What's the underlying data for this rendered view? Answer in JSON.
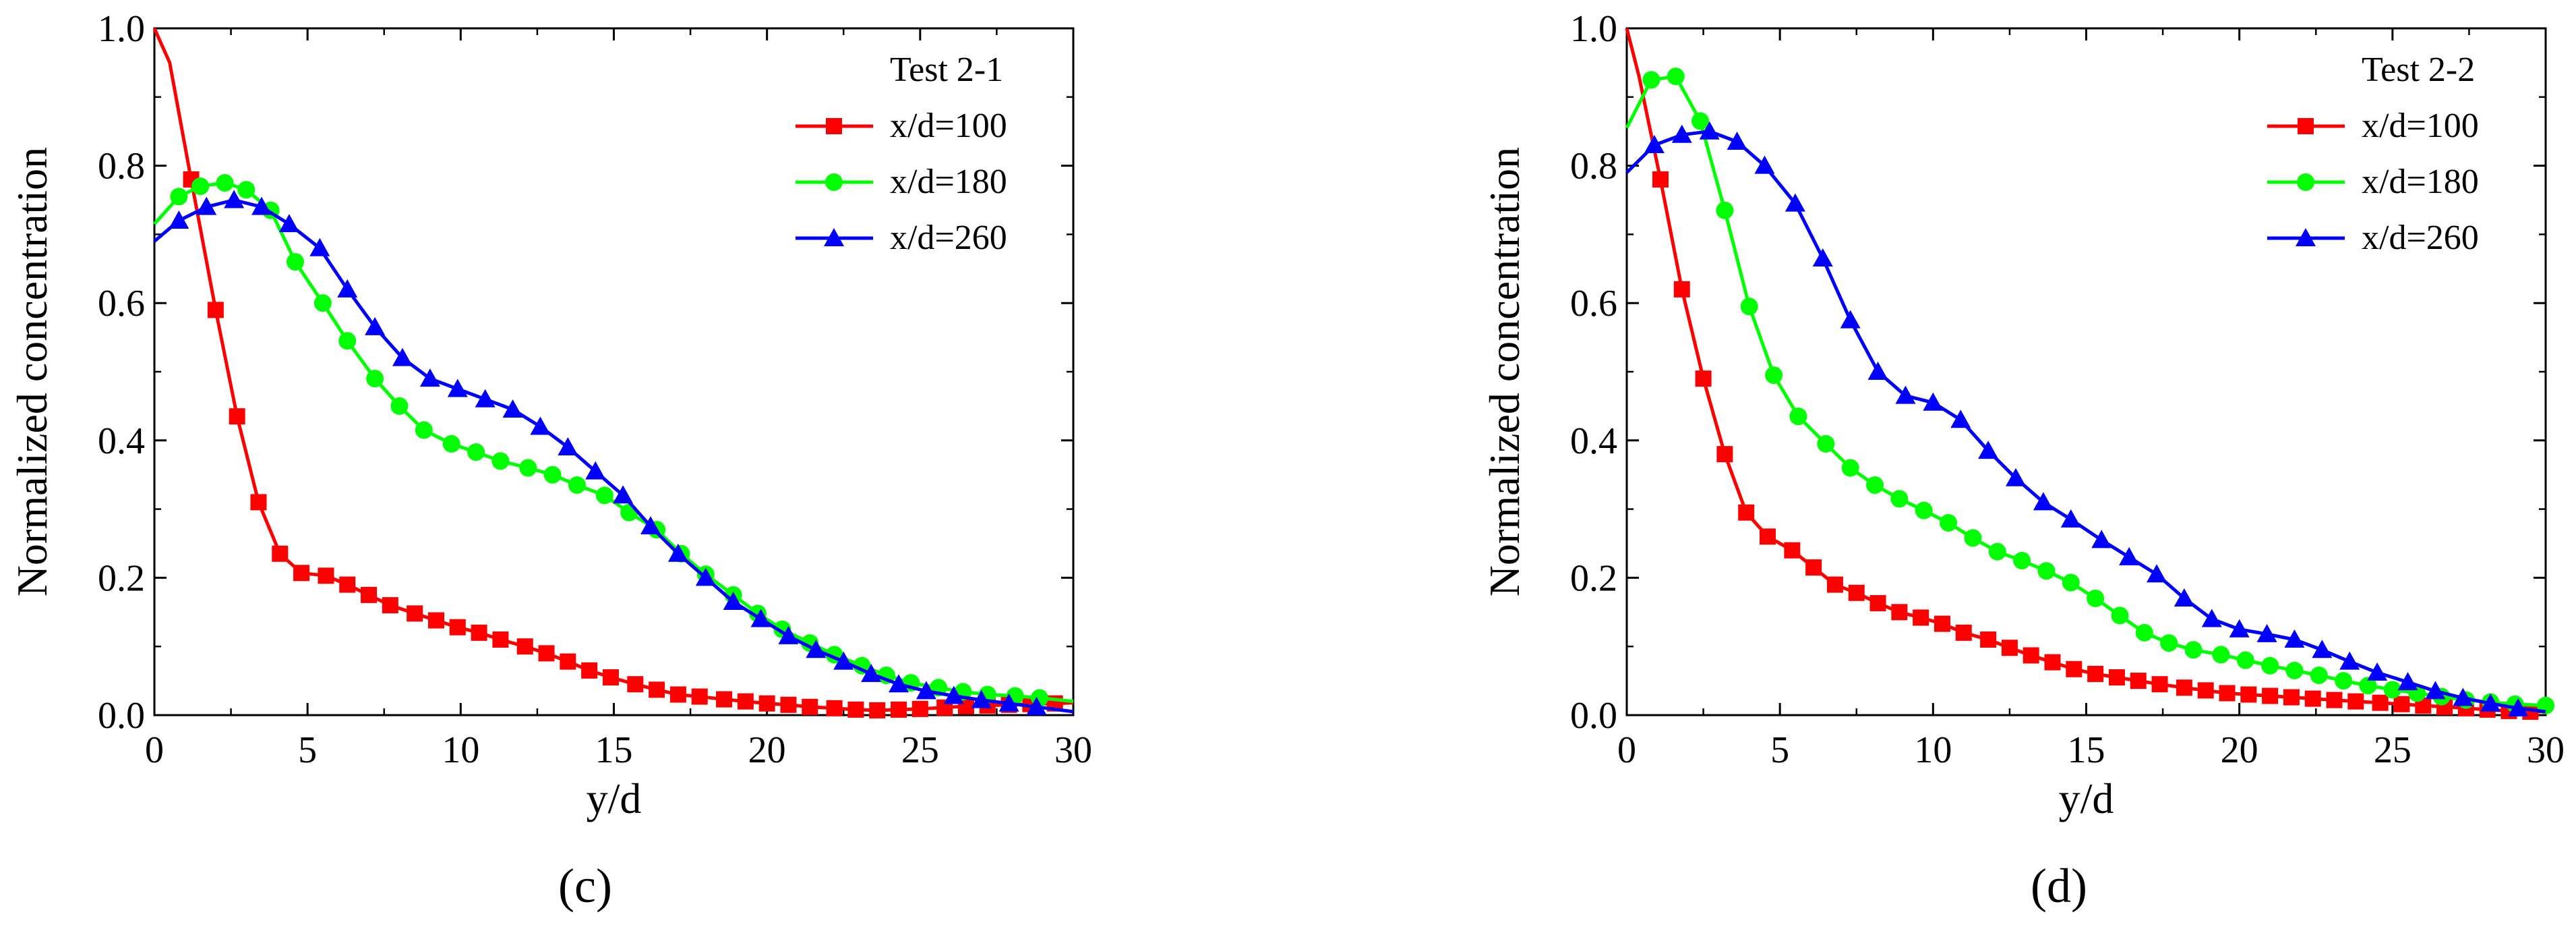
{
  "chart_data": [
    {
      "type": "line",
      "panel_label": "(c)",
      "legend_title": "Test 2-1",
      "xlabel": "y/d",
      "ylabel": "Normalized concentration",
      "xlim": [
        0,
        30
      ],
      "ylim": [
        0,
        1.0
      ],
      "xticks": [
        "0",
        "5",
        "10",
        "15",
        "20",
        "25",
        "30"
      ],
      "yticks": [
        "0.0",
        "0.2",
        "0.4",
        "0.6",
        "0.8",
        "1.0"
      ],
      "grid": false,
      "legend_position": "top-right",
      "series": [
        {
          "name": "x/d=100",
          "color": "#ff0000",
          "marker": "square",
          "x": [
            0,
            0.5,
            1.2,
            2.0,
            2.7,
            3.4,
            4.1,
            4.8,
            5.6,
            6.3,
            7.0,
            7.7,
            8.5,
            9.2,
            9.9,
            10.6,
            11.3,
            12.1,
            12.8,
            13.5,
            14.2,
            14.9,
            15.7,
            16.4,
            17.1,
            17.8,
            18.6,
            19.3,
            20.0,
            20.7,
            21.4,
            22.2,
            22.9,
            23.6,
            24.3,
            25.0,
            25.8,
            26.5,
            27.2,
            27.9,
            28.6,
            29.4,
            30.0
          ],
          "y": [
            1.0,
            0.95,
            0.78,
            0.59,
            0.435,
            0.31,
            0.235,
            0.207,
            0.203,
            0.19,
            0.175,
            0.16,
            0.148,
            0.138,
            0.128,
            0.12,
            0.11,
            0.1,
            0.09,
            0.078,
            0.065,
            0.055,
            0.045,
            0.037,
            0.03,
            0.027,
            0.023,
            0.02,
            0.017,
            0.015,
            0.012,
            0.01,
            0.008,
            0.007,
            0.008,
            0.009,
            0.011,
            0.013,
            0.014,
            0.015,
            0.016,
            0.017,
            0.018
          ],
          "markers": [
            1.2,
            2.0,
            2.7,
            3.4,
            4.1,
            4.8,
            5.6,
            6.3,
            7.0,
            7.7,
            8.5,
            9.2,
            9.9,
            10.6,
            11.3,
            12.1,
            12.8,
            13.5,
            14.2,
            14.9,
            15.7,
            16.4,
            17.1,
            17.8,
            18.6,
            19.3,
            20.0,
            20.7,
            21.4,
            22.2,
            22.9,
            23.6,
            24.3,
            25.0,
            25.8,
            26.5,
            27.2,
            27.9,
            28.6,
            29.4
          ]
        },
        {
          "name": "x/d=180",
          "color": "#00ff00",
          "marker": "circle",
          "x": [
            0,
            0.3,
            0.8,
            1.5,
            2.3,
            3.0,
            3.8,
            4.6,
            5.5,
            6.3,
            7.2,
            8.0,
            8.8,
            9.7,
            10.5,
            11.3,
            12.2,
            13.0,
            13.8,
            14.7,
            15.5,
            16.4,
            17.2,
            18.0,
            18.9,
            19.7,
            20.5,
            21.4,
            22.2,
            23.1,
            23.9,
            24.7,
            25.6,
            26.4,
            27.2,
            28.1,
            28.9,
            30.0
          ],
          "y": [
            0.715,
            0.73,
            0.755,
            0.77,
            0.775,
            0.765,
            0.735,
            0.66,
            0.6,
            0.545,
            0.49,
            0.45,
            0.415,
            0.395,
            0.383,
            0.37,
            0.36,
            0.35,
            0.335,
            0.32,
            0.295,
            0.27,
            0.235,
            0.205,
            0.175,
            0.148,
            0.125,
            0.105,
            0.088,
            0.072,
            0.058,
            0.047,
            0.04,
            0.034,
            0.03,
            0.028,
            0.025,
            0.02
          ],
          "markers": [
            0.8,
            1.5,
            2.3,
            3.0,
            3.8,
            4.6,
            5.5,
            6.3,
            7.2,
            8.0,
            8.8,
            9.7,
            10.5,
            11.3,
            12.2,
            13.0,
            13.8,
            14.7,
            15.5,
            16.4,
            17.2,
            18.0,
            18.9,
            19.7,
            20.5,
            21.4,
            22.2,
            23.1,
            23.9,
            24.7,
            25.6,
            26.4,
            27.2,
            28.1,
            28.9
          ]
        },
        {
          "name": "x/d=260",
          "color": "#0000ff",
          "marker": "triangle",
          "x": [
            0,
            0.8,
            1.7,
            2.6,
            3.5,
            4.4,
            5.4,
            6.3,
            7.2,
            8.1,
            9.0,
            9.9,
            10.8,
            11.7,
            12.6,
            13.5,
            14.4,
            15.3,
            16.2,
            17.1,
            18.0,
            18.9,
            19.8,
            20.7,
            21.6,
            22.5,
            23.4,
            24.3,
            25.2,
            26.1,
            27.0,
            27.9,
            28.8,
            30.0
          ],
          "y": [
            0.69,
            0.72,
            0.74,
            0.75,
            0.74,
            0.715,
            0.68,
            0.62,
            0.565,
            0.52,
            0.49,
            0.475,
            0.46,
            0.445,
            0.42,
            0.39,
            0.355,
            0.32,
            0.275,
            0.235,
            0.2,
            0.165,
            0.14,
            0.115,
            0.095,
            0.078,
            0.06,
            0.045,
            0.035,
            0.028,
            0.022,
            0.017,
            0.012,
            0.005
          ],
          "markers": [
            0.8,
            1.7,
            2.6,
            3.5,
            4.4,
            5.4,
            6.3,
            7.2,
            8.1,
            9.0,
            9.9,
            10.8,
            11.7,
            12.6,
            13.5,
            14.4,
            15.3,
            16.2,
            17.1,
            18.0,
            18.9,
            19.8,
            20.7,
            21.6,
            22.5,
            23.4,
            24.3,
            25.2,
            26.1,
            27.0,
            27.9,
            28.8
          ]
        }
      ]
    },
    {
      "type": "line",
      "panel_label": "(d)",
      "legend_title": "Test 2-2",
      "xlabel": "y/d",
      "ylabel": "Normalized concentration",
      "xlim": [
        0,
        30
      ],
      "ylim": [
        0,
        1.0
      ],
      "xticks": [
        "0",
        "5",
        "10",
        "15",
        "20",
        "25",
        "30"
      ],
      "yticks": [
        "0.0",
        "0.2",
        "0.4",
        "0.6",
        "0.8",
        "1.0"
      ],
      "grid": false,
      "legend_position": "top-right",
      "series": [
        {
          "name": "x/d=100",
          "color": "#ff0000",
          "marker": "square",
          "x": [
            0,
            0.4,
            1.1,
            1.8,
            2.5,
            3.2,
            3.9,
            4.6,
            5.4,
            6.1,
            6.8,
            7.5,
            8.2,
            8.9,
            9.6,
            10.3,
            11.0,
            11.8,
            12.5,
            13.2,
            13.9,
            14.6,
            15.3,
            16.0,
            16.7,
            17.4,
            18.2,
            18.9,
            19.6,
            20.3,
            21.0,
            21.7,
            22.4,
            23.1,
            23.8,
            24.6,
            25.3,
            26.0,
            26.7,
            27.4,
            28.1,
            28.8,
            29.5,
            30.0
          ],
          "y": [
            1.0,
            0.93,
            0.78,
            0.62,
            0.49,
            0.38,
            0.295,
            0.26,
            0.24,
            0.215,
            0.19,
            0.178,
            0.163,
            0.15,
            0.142,
            0.133,
            0.12,
            0.11,
            0.098,
            0.087,
            0.077,
            0.067,
            0.06,
            0.055,
            0.05,
            0.045,
            0.04,
            0.036,
            0.032,
            0.03,
            0.028,
            0.026,
            0.024,
            0.022,
            0.02,
            0.018,
            0.016,
            0.014,
            0.012,
            0.01,
            0.008,
            0.006,
            0.005,
            0.005
          ],
          "markers": [
            1.1,
            1.8,
            2.5,
            3.2,
            3.9,
            4.6,
            5.4,
            6.1,
            6.8,
            7.5,
            8.2,
            8.9,
            9.6,
            10.3,
            11.0,
            11.8,
            12.5,
            13.2,
            13.9,
            14.6,
            15.3,
            16.0,
            16.7,
            17.4,
            18.2,
            18.9,
            19.6,
            20.3,
            21.0,
            21.7,
            22.4,
            23.1,
            23.8,
            24.6,
            25.3,
            26.0,
            26.7,
            27.4,
            28.1,
            28.8,
            29.5
          ]
        },
        {
          "name": "x/d=180",
          "color": "#00ff00",
          "marker": "circle",
          "x": [
            0,
            0.8,
            1.6,
            2.4,
            3.2,
            4.0,
            4.8,
            5.6,
            6.5,
            7.3,
            8.1,
            8.9,
            9.7,
            10.5,
            11.3,
            12.1,
            12.9,
            13.7,
            14.5,
            15.3,
            16.1,
            16.9,
            17.7,
            18.5,
            19.4,
            20.2,
            21.0,
            21.8,
            22.6,
            23.4,
            24.2,
            25.0,
            25.8,
            26.6,
            27.4,
            28.2,
            29.0,
            30.0
          ],
          "y": [
            0.855,
            0.925,
            0.93,
            0.865,
            0.735,
            0.595,
            0.495,
            0.435,
            0.395,
            0.36,
            0.335,
            0.315,
            0.298,
            0.28,
            0.258,
            0.238,
            0.225,
            0.21,
            0.193,
            0.17,
            0.145,
            0.12,
            0.105,
            0.095,
            0.088,
            0.08,
            0.072,
            0.065,
            0.058,
            0.05,
            0.043,
            0.037,
            0.032,
            0.027,
            0.022,
            0.019,
            0.016,
            0.014
          ],
          "markers": [
            0.8,
            1.6,
            2.4,
            3.2,
            4.0,
            4.8,
            5.6,
            6.5,
            7.3,
            8.1,
            8.9,
            9.7,
            10.5,
            11.3,
            12.1,
            12.9,
            13.7,
            14.5,
            15.3,
            16.1,
            16.9,
            17.7,
            18.5,
            19.4,
            20.2,
            21.0,
            21.8,
            22.6,
            23.4,
            24.2,
            25.0,
            25.8,
            26.6,
            27.4,
            28.2,
            29.0,
            30.0
          ]
        },
        {
          "name": "x/d=260",
          "color": "#0000ff",
          "marker": "triangle",
          "x": [
            0,
            0.9,
            1.8,
            2.7,
            3.6,
            4.5,
            5.5,
            6.4,
            7.3,
            8.2,
            9.1,
            10.0,
            10.9,
            11.8,
            12.7,
            13.6,
            14.5,
            15.5,
            16.4,
            17.3,
            18.2,
            19.1,
            20.0,
            20.9,
            21.8,
            22.7,
            23.6,
            24.5,
            25.5,
            26.4,
            27.3,
            28.2,
            29.1,
            30.0
          ],
          "y": [
            0.79,
            0.83,
            0.845,
            0.85,
            0.835,
            0.8,
            0.745,
            0.665,
            0.575,
            0.5,
            0.465,
            0.455,
            0.43,
            0.385,
            0.345,
            0.31,
            0.285,
            0.255,
            0.23,
            0.205,
            0.17,
            0.14,
            0.125,
            0.118,
            0.11,
            0.095,
            0.078,
            0.062,
            0.048,
            0.035,
            0.025,
            0.017,
            0.01,
            0.005
          ],
          "markers": [
            0.9,
            1.8,
            2.7,
            3.6,
            4.5,
            5.5,
            6.4,
            7.3,
            8.2,
            9.1,
            10.0,
            10.9,
            11.8,
            12.7,
            13.6,
            14.5,
            15.5,
            16.4,
            17.3,
            18.2,
            19.1,
            20.0,
            20.9,
            21.8,
            22.7,
            23.6,
            24.5,
            25.5,
            26.4,
            27.3,
            28.2,
            29.1
          ]
        }
      ]
    }
  ]
}
